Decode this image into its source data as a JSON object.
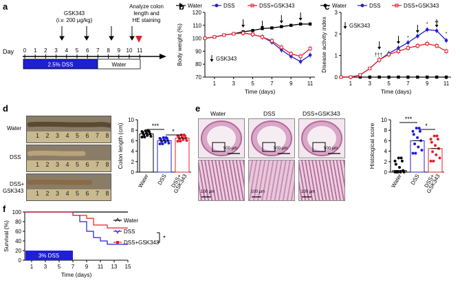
{
  "panel_labels": {
    "a": "a",
    "b": "b",
    "c": "c",
    "d": "d",
    "e": "e",
    "f": "f"
  },
  "panel_a": {
    "gsk_label": "GSK343",
    "dose": "(i.v. 200 µg/kg)",
    "analyze_line1": "Analyze colon",
    "analyze_line2": "length and",
    "analyze_line3": "HE staining",
    "day_label": "Day",
    "days": [
      "0",
      "1",
      "2",
      "3",
      "4",
      "5",
      "6",
      "7",
      "8",
      "9",
      "10",
      "11"
    ],
    "dss_bar": "2.5% DSS",
    "water_bar": "Water",
    "colors": {
      "dss": "#1f1fd6",
      "triangle": "#e0202a"
    }
  },
  "panel_b": {
    "chart_data": {
      "type": "line",
      "ylabel": "Body weight (%)",
      "xlabel": "Time (days)",
      "ylim": [
        70,
        120
      ],
      "yticks": [
        "70",
        "80",
        "90",
        "100",
        "110",
        "120"
      ],
      "xticks": [
        "1",
        "3",
        "5",
        "7",
        "9",
        "11"
      ],
      "x": [
        0,
        1,
        2,
        3,
        4,
        5,
        6,
        7,
        8,
        9,
        10,
        11
      ],
      "legend": [
        "Water",
        "DSS",
        "DSS+GSK343"
      ],
      "annotation": "GSK343",
      "arrow_days": [
        4,
        6,
        8,
        10
      ],
      "series": [
        {
          "name": "Water",
          "color": "#000000",
          "values": [
            100,
            101,
            102.5,
            103.5,
            105,
            106,
            107.5,
            108,
            109,
            110,
            111,
            111
          ]
        },
        {
          "name": "DSS",
          "color": "#1f1fd6",
          "values": [
            100,
            101,
            102.5,
            103.5,
            104,
            103,
            101,
            97,
            91,
            86,
            82,
            87
          ]
        },
        {
          "name": "DSS+GSK343",
          "color": "#e0202a",
          "values": [
            100,
            101,
            102.5,
            103.5,
            104,
            103,
            101,
            98,
            93,
            88,
            86,
            92
          ]
        }
      ]
    }
  },
  "panel_c": {
    "chart_data": {
      "type": "line",
      "ylabel": "Disease activity index",
      "xlabel": "Time (days)",
      "ylim": [
        0,
        3
      ],
      "yticks": [
        "0",
        "1",
        "2",
        "3"
      ],
      "xticks": [
        "1",
        "3",
        "5",
        "7",
        "9",
        "11"
      ],
      "x": [
        0,
        1,
        2,
        3,
        4,
        5,
        6,
        7,
        8,
        9,
        10,
        11
      ],
      "legend": [
        "Water",
        "DSS",
        "DSS+GSK343"
      ],
      "annotation": "GSK343",
      "arrow_days": [
        4,
        6,
        8,
        10
      ],
      "star_marks": [
        "†††",
        "*",
        "*",
        "*",
        "**",
        "*"
      ],
      "series": [
        {
          "name": "Water",
          "color": "#000000",
          "values": [
            0,
            0,
            0,
            0,
            0,
            0,
            0,
            0,
            0,
            0,
            0,
            0
          ]
        },
        {
          "name": "DSS",
          "color": "#1f1fd6",
          "values": [
            0,
            0,
            0.1,
            0.4,
            0.8,
            1.1,
            1.35,
            1.6,
            1.9,
            2.2,
            2.15,
            1.7
          ]
        },
        {
          "name": "DSS+GSK343",
          "color": "#e0202a",
          "values": [
            0,
            0,
            0.1,
            0.4,
            0.8,
            1.05,
            1.2,
            1.35,
            1.45,
            1.55,
            1.45,
            1.2
          ]
        }
      ]
    }
  },
  "panel_d": {
    "row_labels": [
      "Water",
      "DSS",
      "DSS+",
      "GSK343"
    ],
    "ruler_numbers": [
      "1",
      "2",
      "3",
      "4",
      "5",
      "6",
      "7",
      "8"
    ],
    "chart_data": {
      "type": "bar",
      "ylabel": "Colon length (cm)",
      "categories": [
        "Water",
        "DSS",
        "DSS+\nGSK343"
      ],
      "category_labels": [
        "Water",
        "DSS",
        "DSS+",
        "GSK343"
      ],
      "values": [
        7.3,
        6.0,
        6.5
      ],
      "ylim": [
        0,
        10
      ],
      "yticks": [
        "0",
        "2",
        "4",
        "6",
        "8",
        "10"
      ],
      "sig": [
        "***",
        "*"
      ],
      "colors": [
        "#000000",
        "#1f1fd6",
        "#e0202a"
      ]
    }
  },
  "panel_e": {
    "column_labels": [
      "Water",
      "DSS",
      "DSS+GSK343"
    ],
    "scalebars_top": [
      "500 µm",
      "500 µm",
      "500 µm"
    ],
    "scalebars_bottom": [
      "100 µm",
      "100 µm",
      "100 µm"
    ],
    "chart_data": {
      "type": "bar",
      "ylabel": "Histological score",
      "categories": [
        "Water",
        "DSS",
        "DSS+\nGSK343"
      ],
      "category_labels": [
        "Water",
        "DSS",
        "DSS+",
        "GSK343"
      ],
      "values": [
        0.3,
        6.0,
        4.5
      ],
      "ylim": [
        0,
        10
      ],
      "yticks": [
        "0",
        "2",
        "4",
        "6",
        "8",
        "10"
      ],
      "sig": [
        "***",
        "*"
      ],
      "colors": [
        "#000000",
        "#1f1fd6",
        "#e0202a"
      ]
    }
  },
  "panel_f": {
    "chart_data": {
      "type": "line",
      "ylabel": "Survival (%)",
      "xlabel": "Time (days)",
      "ylim": [
        0,
        100
      ],
      "yticks": [
        "0",
        "20",
        "40",
        "60",
        "80",
        "100"
      ],
      "xticks": [
        "1",
        "3",
        "5",
        "7",
        "9",
        "11",
        "13",
        "15"
      ],
      "legend": [
        "Water",
        "DSS",
        "DSS+GSK343"
      ],
      "sig": "*",
      "bar_label": "3% DSS",
      "series": [
        {
          "name": "Water",
          "color": "#000000",
          "steps": [
            [
              0,
              100
            ],
            [
              15,
              100
            ]
          ]
        },
        {
          "name": "DSS",
          "color": "#1f1fd6",
          "steps": [
            [
              0,
              100
            ],
            [
              7,
              100
            ],
            [
              7,
              93
            ],
            [
              8,
              93
            ],
            [
              8,
              80
            ],
            [
              9,
              80
            ],
            [
              9,
              60
            ],
            [
              10,
              60
            ],
            [
              10,
              47
            ],
            [
              11,
              47
            ],
            [
              11,
              40
            ],
            [
              12,
              40
            ],
            [
              12,
              33
            ],
            [
              15,
              33
            ]
          ]
        },
        {
          "name": "DSS+GSK343",
          "color": "#e0202a",
          "steps": [
            [
              0,
              100
            ],
            [
              7,
              100
            ],
            [
              7,
              93
            ],
            [
              9,
              93
            ],
            [
              9,
              87
            ],
            [
              10,
              87
            ],
            [
              10,
              73
            ],
            [
              12,
              73
            ],
            [
              12,
              67
            ],
            [
              15,
              67
            ]
          ]
        }
      ]
    }
  }
}
